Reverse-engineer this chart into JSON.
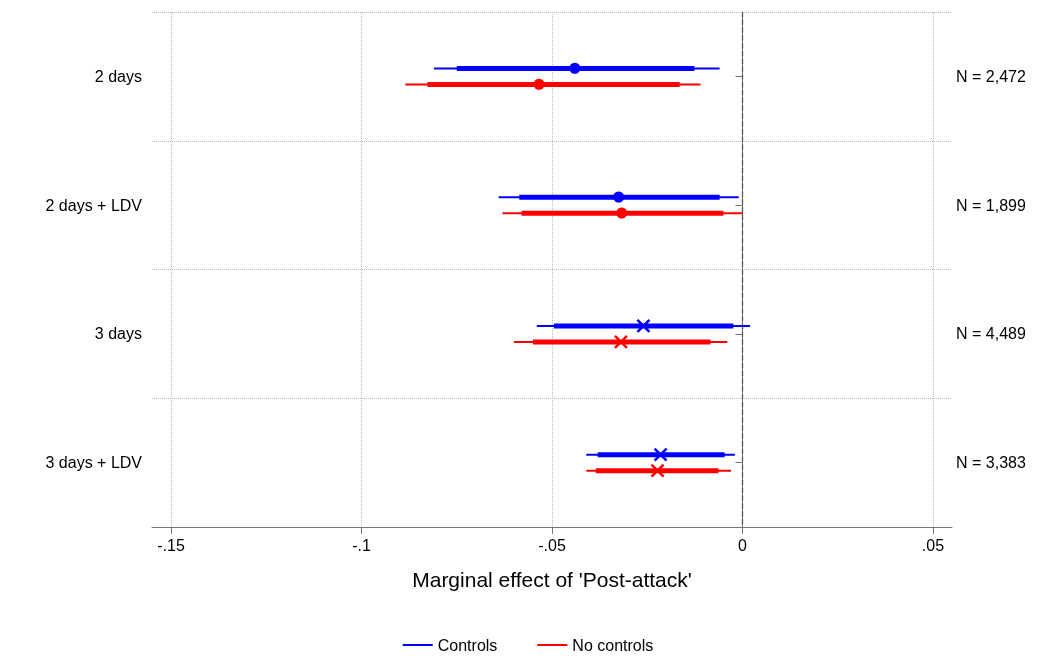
{
  "chart_data": {
    "type": "scatter",
    "orientation": "horizontal",
    "xlabel": "Marginal effect of 'Post-attack'",
    "categories": [
      "2 days",
      "2 days + LDV",
      "3 days",
      "3 days + LDV"
    ],
    "annotations": [
      "N = 2,472",
      "N = 1,899",
      "N = 4,489",
      "N = 3,383"
    ],
    "xlim": [
      -0.155,
      0.055
    ],
    "xticks": [
      {
        "value": -0.15,
        "label": "-.15"
      },
      {
        "value": -0.1,
        "label": "-.1"
      },
      {
        "value": -0.05,
        "label": "-.05"
      },
      {
        "value": 0,
        "label": "0"
      },
      {
        "value": 0.05,
        "label": ".05"
      }
    ],
    "grid": true,
    "legend": "bottom",
    "ref_lines": [
      {
        "axis": "x",
        "value": 0,
        "line_style": "dashed",
        "color": "#555555"
      }
    ],
    "series": [
      {
        "name": "Controls",
        "color": "#0000ff",
        "marker": "circle",
        "values": [
          -0.044,
          -0.0325,
          null,
          null
        ],
        "errors": [
          [
            -0.081,
            -0.006
          ],
          [
            -0.064,
            -0.001
          ],
          null,
          null
        ]
      },
      {
        "color": "#0000ff",
        "marker": "cross",
        "values": [
          null,
          null,
          -0.026,
          -0.0215
        ],
        "errors": [
          null,
          null,
          [
            -0.054,
            0.002
          ],
          [
            -0.041,
            -0.002
          ]
        ]
      },
      {
        "type": "bar",
        "color": "#0000ff",
        "base": [
          -0.075,
          -0.0586,
          -0.0495,
          -0.038
        ],
        "values": [
          0.0624,
          0.0526,
          0.0471,
          0.0333
        ]
      },
      {
        "name": "No controls",
        "color": "#ff0000",
        "marker": "circle",
        "values": [
          -0.0534,
          -0.0317,
          null,
          null
        ],
        "errors": [
          [
            -0.0885,
            -0.011
          ],
          [
            -0.063,
            0.0
          ],
          null,
          null
        ]
      },
      {
        "color": "#ff0000",
        "marker": "cross",
        "values": [
          null,
          null,
          -0.0319,
          -0.0223
        ],
        "errors": [
          null,
          null,
          [
            -0.06,
            -0.004
          ],
          [
            -0.041,
            -0.003
          ]
        ]
      },
      {
        "type": "bar",
        "color": "#ff0000",
        "base": [
          -0.0827,
          -0.058,
          -0.055,
          -0.0385
        ],
        "values": [
          0.0662,
          0.053,
          0.0466,
          0.0322
        ]
      }
    ]
  }
}
